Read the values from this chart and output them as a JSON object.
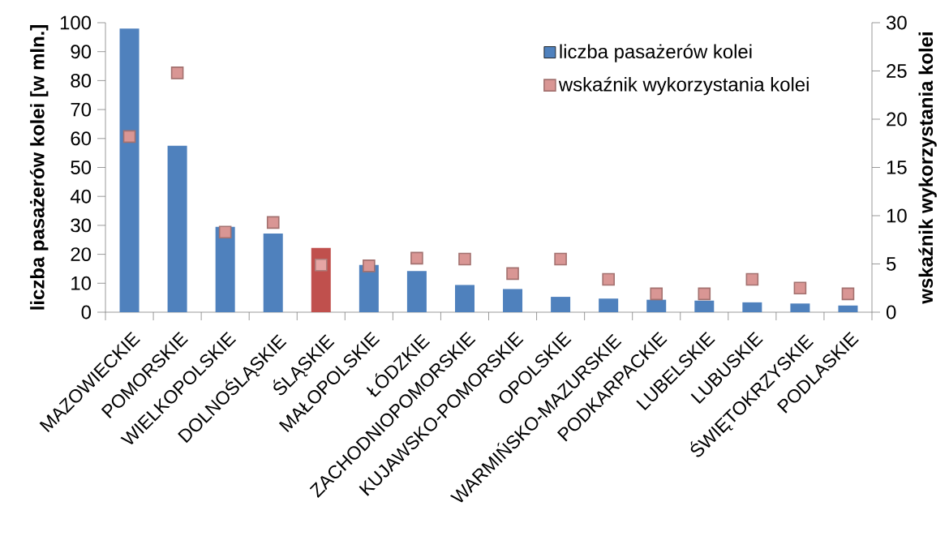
{
  "chart_data": {
    "type": "bar",
    "categories": [
      "MAZOWIECKIE",
      "POMORSKIE",
      "WIELKOPOLSKIE",
      "DOLNOŚLĄSKIE",
      "ŚLĄSKIE",
      "MAŁOPOLSKIE",
      "ŁÓDZKIE",
      "ZACHODNIOPOMORSKIE",
      "KUJAWSKO-POMORSKIE",
      "OPOLSKIE",
      "WARMIŃSKO-MAZURSKIE",
      "PODKARPACKIE",
      "LUBELSKIE",
      "LUBUSKIE",
      "ŚWIĘTOKRZYSKIE",
      "PODLASKIE"
    ],
    "series": [
      {
        "name": "liczba pasażerów kolei",
        "color": "#4f81bd",
        "colors": [
          "#4f81bd",
          "#4f81bd",
          "#4f81bd",
          "#4f81bd",
          "#c0504d",
          "#4f81bd",
          "#4f81bd",
          "#4f81bd",
          "#4f81bd",
          "#4f81bd",
          "#4f81bd",
          "#4f81bd",
          "#4f81bd",
          "#4f81bd",
          "#4f81bd",
          "#4f81bd"
        ],
        "values": [
          98,
          57.5,
          29.5,
          27.2,
          22.2,
          16.3,
          14.2,
          9.4,
          8,
          5.3,
          4.7,
          4.3,
          4,
          3.4,
          3,
          2.3
        ]
      },
      {
        "name": "wskaźnik wykorzystania kolei",
        "type": "scatter",
        "axis": "y2",
        "color": "#d99694",
        "colors": [
          "#d99694",
          "#d99694",
          "#d99694",
          "#d99694",
          "#e6a5a4",
          "#d99694",
          "#d99694",
          "#d99694",
          "#d99694",
          "#d99694",
          "#d99694",
          "#d99694",
          "#d99694",
          "#d99694",
          "#d99694",
          "#d99694"
        ],
        "values": [
          18.2,
          24.8,
          8.3,
          9.3,
          4.9,
          4.8,
          5.6,
          5.5,
          4.0,
          5.5,
          3.4,
          1.9,
          1.9,
          3.4,
          2.5,
          1.9
        ]
      }
    ],
    "ylabel": "liczba pasażerów kolei [w mln.]",
    "y2label": "wskaźnik wykorzystania kolei",
    "ylim": [
      0,
      100
    ],
    "yticks": [
      0,
      10,
      20,
      30,
      40,
      50,
      60,
      70,
      80,
      90,
      100
    ],
    "y2lim": [
      0,
      30
    ],
    "y2ticks": [
      0,
      5,
      10,
      15,
      20,
      25,
      30
    ],
    "marker": "square",
    "legend": "top right"
  }
}
